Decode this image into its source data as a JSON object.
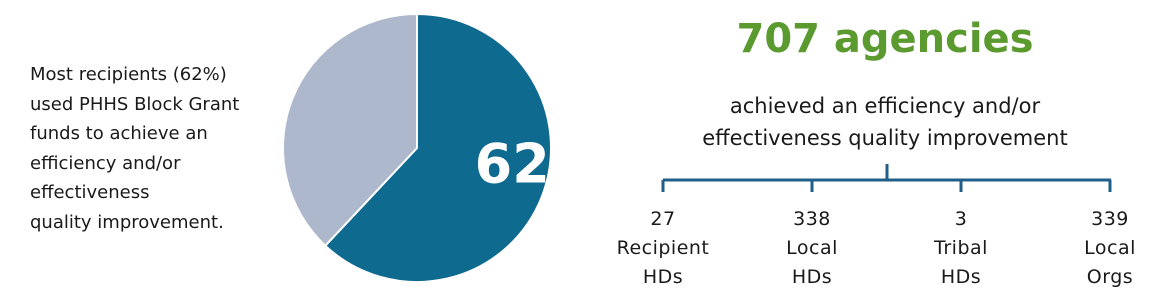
{
  "description": [
    "Most recipients (62%)",
    "used PHHS Block Grant",
    "funds to achieve an",
    "efficiency and/or",
    "effectiveness",
    "quality improvement."
  ],
  "chart_data": {
    "type": "pie",
    "categories": [
      null,
      null
    ],
    "values": [
      62,
      38
    ],
    "value_labels": [
      "62%",
      null
    ],
    "colors": [
      "#0f6a8f",
      "#adb8cc"
    ]
  },
  "headline": "707 agencies",
  "subheadline": [
    "achieved an efficiency and/or",
    "effectiveness quality improvement"
  ],
  "breakdown": [
    {
      "value": 27,
      "label": "Recipient HDs"
    },
    {
      "value": 338,
      "label": "Local HDs"
    },
    {
      "value": 3,
      "label": "Tribal HDs"
    },
    {
      "value": 339,
      "label": "Local Orgs"
    }
  ]
}
